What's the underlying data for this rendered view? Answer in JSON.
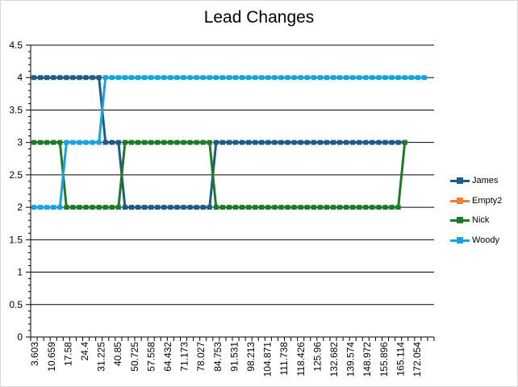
{
  "chart_data": {
    "type": "line",
    "title": "Lead Changes",
    "xlabel": "",
    "ylabel": "",
    "ylim": [
      0,
      4.5
    ],
    "yticks": [
      "0",
      "0.5",
      "1",
      "1.5",
      "2",
      "2.5",
      "3",
      "3.5",
      "4",
      "4.5"
    ],
    "x_tick_labels": [
      "3.603",
      "10.659",
      "17.58",
      "24.4",
      "31.225",
      "40.85",
      "50.725",
      "57.558",
      "64.432",
      "71.173",
      "78.027",
      "84.753",
      "91.531",
      "98.213",
      "104.871",
      "111.738",
      "118.426",
      "125.96",
      "132.682",
      "139.574",
      "148.972",
      "155.896",
      "165.114",
      "172.054"
    ],
    "grid": true,
    "legend_position": "right",
    "series": [
      {
        "name": "James",
        "color": "#1f5b82",
        "values": [
          4,
          4,
          4,
          4,
          4,
          4,
          4,
          4,
          4,
          4,
          4,
          3,
          3,
          3,
          2,
          2,
          2,
          2,
          2,
          2,
          2,
          2,
          2,
          2,
          2,
          2,
          2,
          2,
          3,
          3,
          3,
          3,
          3,
          3,
          3,
          3,
          3,
          3,
          3,
          3,
          3,
          3,
          3,
          3,
          3,
          3,
          3,
          3,
          3,
          3,
          3,
          3,
          3,
          3,
          3,
          3,
          3,
          3
        ]
      },
      {
        "name": "Empty2",
        "color": "#f07e32",
        "values": []
      },
      {
        "name": "Nick",
        "color": "#1e7a29",
        "values": [
          3,
          3,
          3,
          3,
          3,
          2,
          2,
          2,
          2,
          2,
          2,
          2,
          2,
          2,
          3,
          3,
          3,
          3,
          3,
          3,
          3,
          3,
          3,
          3,
          3,
          3,
          3,
          3,
          2,
          2,
          2,
          2,
          2,
          2,
          2,
          2,
          2,
          2,
          2,
          2,
          2,
          2,
          2,
          2,
          2,
          2,
          2,
          2,
          2,
          2,
          2,
          2,
          2,
          2,
          2,
          2,
          2,
          3
        ]
      },
      {
        "name": "Woody",
        "color": "#1aa3db",
        "values": [
          2,
          2,
          2,
          2,
          2,
          3,
          3,
          3,
          3,
          3,
          3,
          4,
          4,
          4,
          4,
          4,
          4,
          4,
          4,
          4,
          4,
          4,
          4,
          4,
          4,
          4,
          4,
          4,
          4,
          4,
          4,
          4,
          4,
          4,
          4,
          4,
          4,
          4,
          4,
          4,
          4,
          4,
          4,
          4,
          4,
          4,
          4,
          4,
          4,
          4,
          4,
          4,
          4,
          4,
          4,
          4,
          4,
          4,
          4,
          4,
          4
        ]
      }
    ]
  }
}
